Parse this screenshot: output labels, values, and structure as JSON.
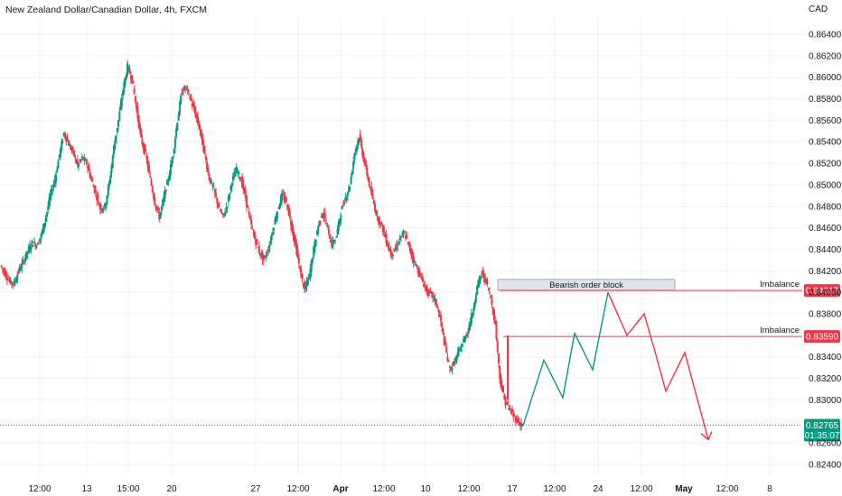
{
  "chart_data": {
    "type": "candlestick",
    "title": "New Zealand Dollar/Canadian Dollar, 4h, FXCM",
    "currency": "CAD",
    "ylim": [
      0.8235,
      0.8655
    ],
    "y_ticks": [
      "0.86400",
      "0.86200",
      "0.86000",
      "0.85800",
      "0.85600",
      "0.85400",
      "0.85200",
      "0.85000",
      "0.84800",
      "0.84600",
      "0.84400",
      "0.84200",
      "0.84000",
      "0.83800",
      "0.83400",
      "0.83200",
      "0.83000",
      "0.82600",
      "0.82400"
    ],
    "x_ticks": [
      {
        "label": "12:00",
        "bold": false
      },
      {
        "label": "13",
        "bold": false
      },
      {
        "label": "15:00",
        "bold": false
      },
      {
        "label": "20",
        "bold": false
      },
      {
        "label": "27",
        "bold": false
      },
      {
        "label": "12:00",
        "bold": false
      },
      {
        "label": "Apr",
        "bold": true
      },
      {
        "label": "12:00",
        "bold": false
      },
      {
        "label": "10",
        "bold": false
      },
      {
        "label": "12:00",
        "bold": false
      },
      {
        "label": "17",
        "bold": false
      },
      {
        "label": "12:00",
        "bold": false
      },
      {
        "label": "24",
        "bold": false
      },
      {
        "label": "12:00",
        "bold": false
      },
      {
        "label": "May",
        "bold": true
      },
      {
        "label": "12:00",
        "bold": false
      },
      {
        "label": "8",
        "bold": false
      }
    ],
    "colors": {
      "up": "#089981",
      "down": "#f23645",
      "grid": "#f0f3fa",
      "text": "#131722",
      "block": "#e0e3eb",
      "block_border": "#9598a1"
    },
    "series_path_points": [
      0.8425,
      0.8418,
      0.841,
      0.8408,
      0.842,
      0.8428,
      0.8438,
      0.8446,
      0.8444,
      0.8453,
      0.847,
      0.849,
      0.8505,
      0.8528,
      0.8548,
      0.8538,
      0.853,
      0.8518,
      0.8525,
      0.852,
      0.8505,
      0.8492,
      0.8478,
      0.848,
      0.8502,
      0.8535,
      0.856,
      0.8588,
      0.861,
      0.8598,
      0.857,
      0.8542,
      0.8528,
      0.8505,
      0.8484,
      0.847,
      0.8488,
      0.8506,
      0.8528,
      0.856,
      0.8588,
      0.859,
      0.8578,
      0.8565,
      0.855,
      0.8528,
      0.8506,
      0.8495,
      0.848,
      0.847,
      0.8482,
      0.8504,
      0.8514,
      0.8505,
      0.8488,
      0.8466,
      0.845,
      0.8438,
      0.843,
      0.844,
      0.8458,
      0.8476,
      0.849,
      0.8484,
      0.8464,
      0.8444,
      0.842,
      0.8402,
      0.8415,
      0.844,
      0.8462,
      0.8475,
      0.846,
      0.8444,
      0.8452,
      0.8475,
      0.8488,
      0.85,
      0.853,
      0.8545,
      0.8524,
      0.8505,
      0.8486,
      0.847,
      0.8462,
      0.8448,
      0.8435,
      0.844,
      0.845,
      0.8455,
      0.8442,
      0.843,
      0.842,
      0.841,
      0.84,
      0.8398,
      0.839,
      0.8372,
      0.8348,
      0.8328,
      0.8335,
      0.8345,
      0.8355,
      0.8365,
      0.8382,
      0.8405,
      0.8418,
      0.841,
      0.8395,
      0.837,
      0.832,
      0.83,
      0.8292,
      0.8285,
      0.828,
      0.8276
    ],
    "annotations": {
      "order_block_label": "Bearish order block",
      "order_block_range": [
        0.8402,
        0.8412
      ],
      "imbalance_1": {
        "label": "Imbalance",
        "price": 0.84017,
        "price_label": "0.84017"
      },
      "imbalance_2": {
        "label": "Imbalance",
        "price": 0.8359,
        "price_label": "0.83590"
      },
      "current_price": 0.82765,
      "current_price_label": "0.82765",
      "countdown_label": "01:35:07",
      "projection_green": [
        0.8276,
        0.8337,
        0.8302,
        0.8362,
        0.8328,
        0.84
      ],
      "projection_red": [
        0.84,
        0.836,
        0.838,
        0.8345,
        0.8308,
        0.8344,
        0.8263
      ]
    }
  }
}
